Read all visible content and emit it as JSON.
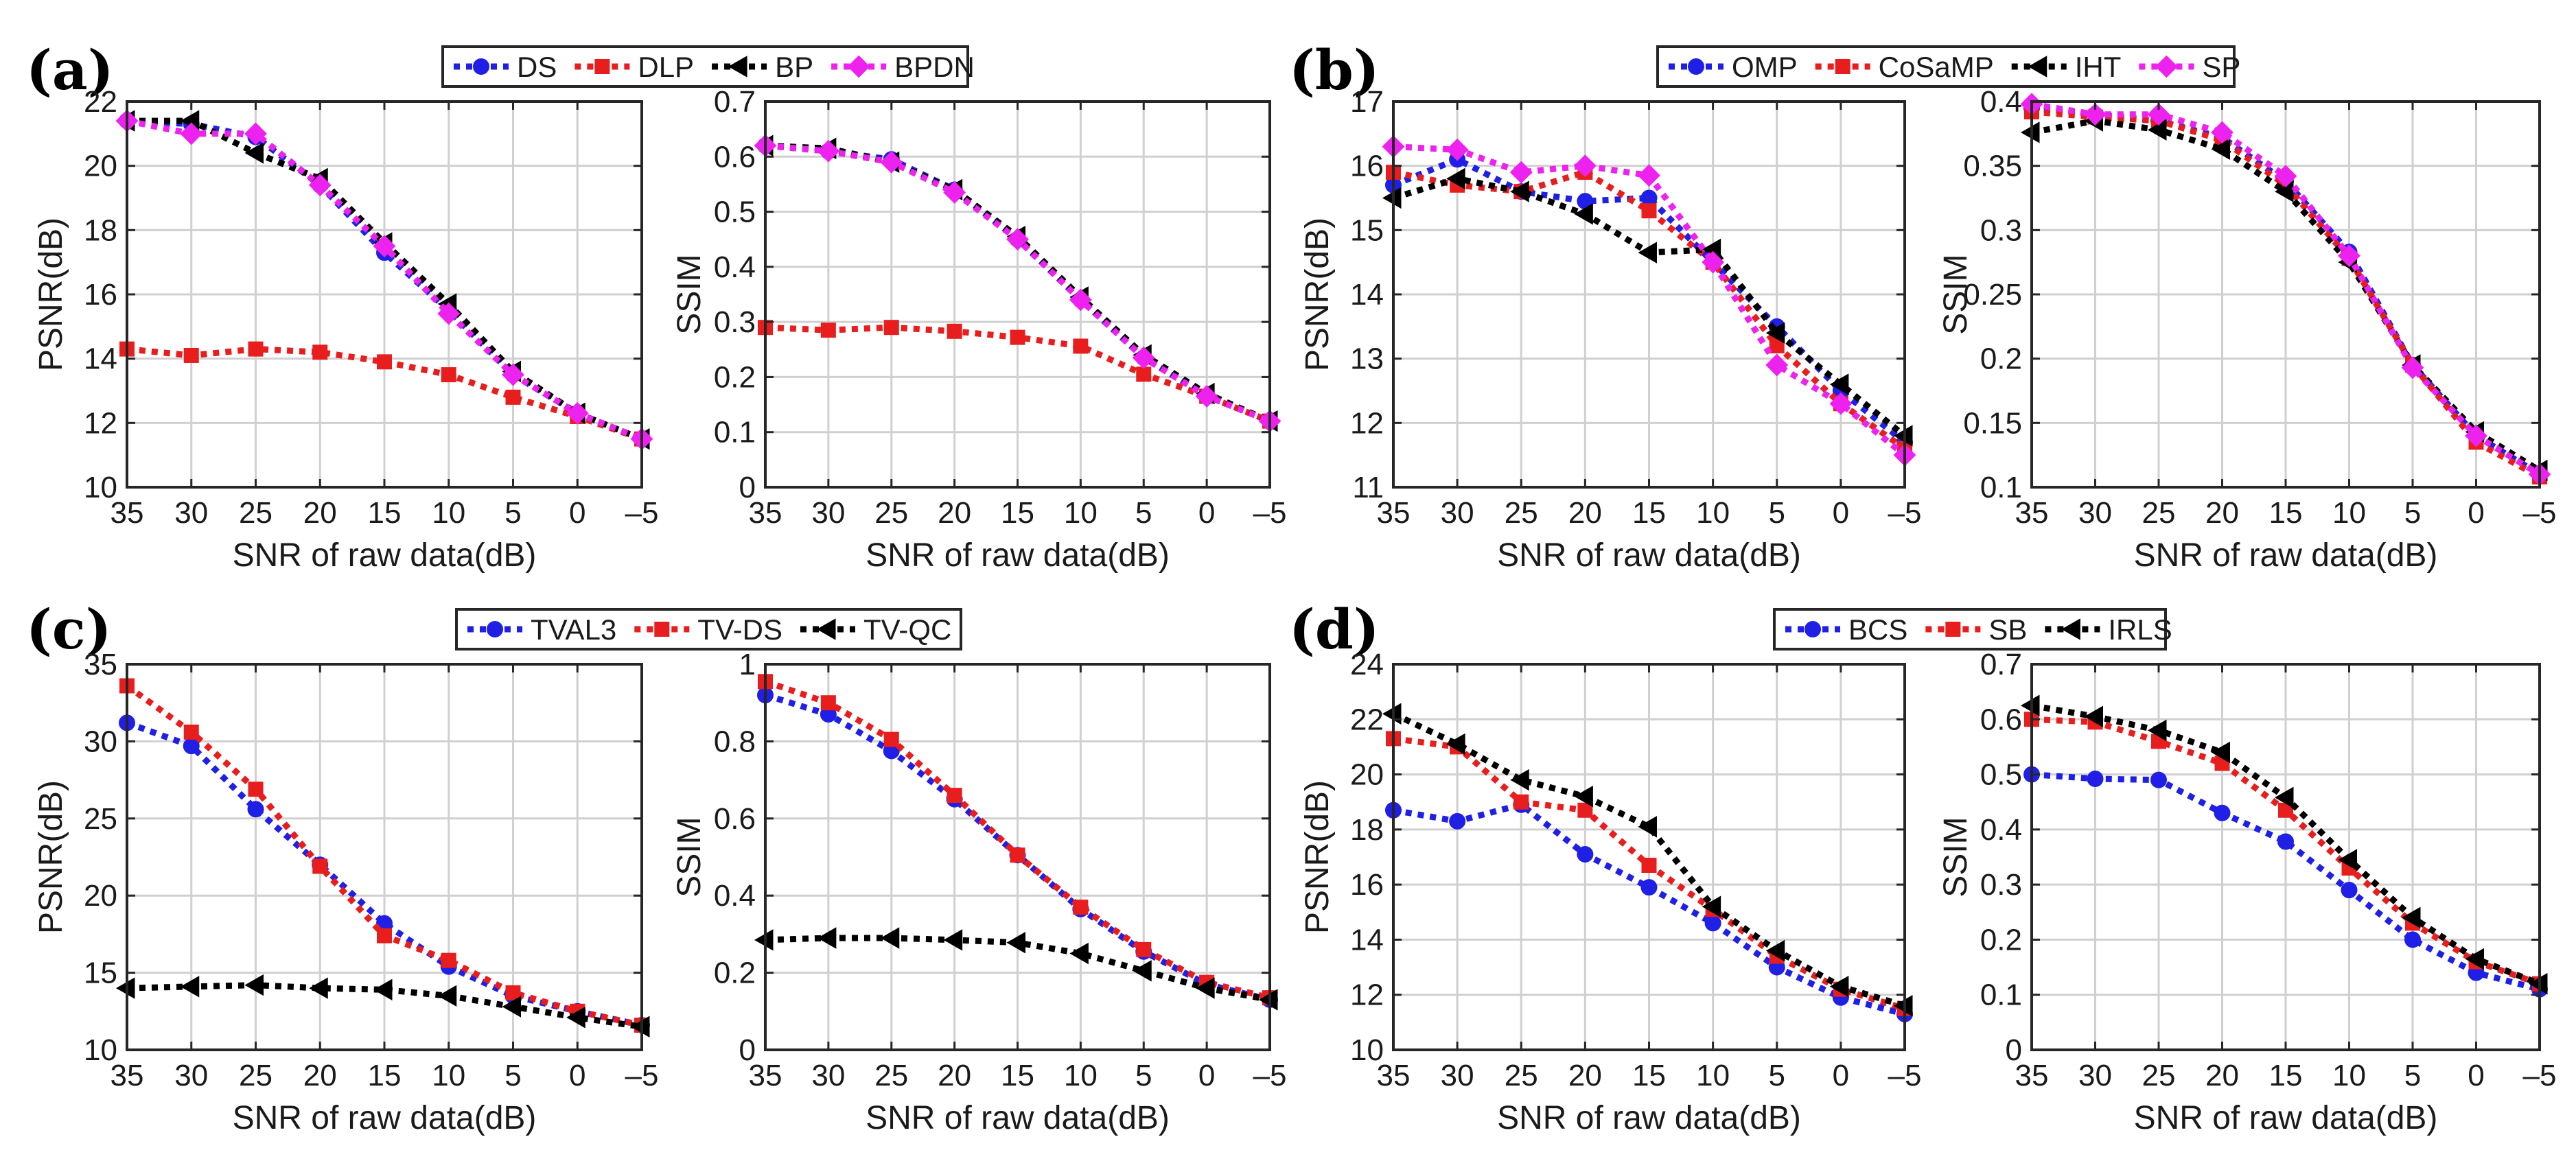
{
  "figure": {
    "panel_labels": [
      "(a)",
      "(b)",
      "(c)",
      "(d)"
    ],
    "colors": {
      "blue": "#1f1fe6",
      "red": "#e81e1e",
      "black": "#000000",
      "magenta": "#ee22ee",
      "grid": "#d0d0d0"
    }
  },
  "chart_data": [
    {
      "type": "line",
      "panel": "(a)",
      "x": [
        "35",
        "30",
        "25",
        "20",
        "15",
        "10",
        "5",
        "0",
        "–5"
      ],
      "xlabel": "SNR of raw data(dB)",
      "ylabel": "PSNR(dB)",
      "ylim": [
        10,
        22
      ],
      "yticks": [
        "10",
        "12",
        "14",
        "16",
        "18",
        "20",
        "22"
      ],
      "grid": true,
      "legend": "top-center",
      "series": [
        {
          "name": "DS",
          "color": "blue",
          "marker": "circle",
          "values": [
            21.4,
            21.3,
            20.9,
            19.4,
            17.3,
            15.5,
            13.5,
            12.3,
            11.5
          ]
        },
        {
          "name": "DLP",
          "color": "red",
          "marker": "square",
          "values": [
            14.3,
            14.1,
            14.3,
            14.2,
            13.9,
            13.5,
            12.8,
            12.2,
            11.5
          ]
        },
        {
          "name": "BP",
          "color": "black",
          "marker": "triangle-left",
          "values": [
            21.4,
            21.4,
            20.4,
            19.6,
            17.6,
            15.7,
            13.6,
            12.3,
            11.5
          ]
        },
        {
          "name": "BPDN",
          "color": "magenta",
          "marker": "diamond",
          "values": [
            21.4,
            21.0,
            21.0,
            19.4,
            17.5,
            15.4,
            13.5,
            12.3,
            11.5
          ]
        }
      ]
    },
    {
      "type": "line",
      "panel": "(a)",
      "x": [
        "35",
        "30",
        "25",
        "20",
        "15",
        "10",
        "5",
        "0",
        "–5"
      ],
      "xlabel": "SNR of raw data(dB)",
      "ylabel": "SSIM",
      "ylim": [
        0,
        0.7
      ],
      "yticks": [
        "0",
        "0.1",
        "0.2",
        "0.3",
        "0.4",
        "0.5",
        "0.6",
        "0.7"
      ],
      "grid": true,
      "series": [
        {
          "name": "DS",
          "color": "blue",
          "marker": "circle",
          "values": [
            0.62,
            0.61,
            0.595,
            0.54,
            0.45,
            0.34,
            0.235,
            0.165,
            0.12
          ]
        },
        {
          "name": "DLP",
          "color": "red",
          "marker": "square",
          "values": [
            0.29,
            0.285,
            0.29,
            0.283,
            0.272,
            0.256,
            0.205,
            0.165,
            0.12
          ]
        },
        {
          "name": "BP",
          "color": "black",
          "marker": "triangle-left",
          "values": [
            0.62,
            0.615,
            0.59,
            0.54,
            0.455,
            0.345,
            0.24,
            0.17,
            0.12
          ]
        },
        {
          "name": "BPDN",
          "color": "magenta",
          "marker": "diamond",
          "values": [
            0.62,
            0.61,
            0.59,
            0.535,
            0.45,
            0.34,
            0.235,
            0.165,
            0.12
          ]
        }
      ]
    },
    {
      "type": "line",
      "panel": "(b)",
      "x": [
        "35",
        "30",
        "25",
        "20",
        "15",
        "10",
        "5",
        "0",
        "–5"
      ],
      "xlabel": "SNR of raw data(dB)",
      "ylabel": "PSNR(dB)",
      "ylim": [
        11,
        17
      ],
      "yticks": [
        "11",
        "12",
        "13",
        "14",
        "15",
        "16",
        "17"
      ],
      "grid": true,
      "legend": "top-center",
      "series": [
        {
          "name": "OMP",
          "color": "blue",
          "marker": "circle",
          "values": [
            15.7,
            16.1,
            15.6,
            15.45,
            15.5,
            14.5,
            13.5,
            12.5,
            11.7
          ]
        },
        {
          "name": "CoSaMP",
          "color": "red",
          "marker": "square",
          "values": [
            15.9,
            15.7,
            15.6,
            15.9,
            15.3,
            14.5,
            13.2,
            12.3,
            11.6
          ]
        },
        {
          "name": "IHT",
          "color": "black",
          "marker": "triangle-left",
          "values": [
            15.5,
            15.8,
            15.6,
            15.25,
            14.65,
            14.7,
            13.4,
            12.6,
            11.8
          ]
        },
        {
          "name": "SP",
          "color": "magenta",
          "marker": "diamond",
          "values": [
            16.3,
            16.25,
            15.9,
            16.0,
            15.85,
            14.5,
            12.9,
            12.3,
            11.5
          ]
        }
      ]
    },
    {
      "type": "line",
      "panel": "(b)",
      "x": [
        "35",
        "30",
        "25",
        "20",
        "15",
        "10",
        "5",
        "0",
        "–5"
      ],
      "xlabel": "SNR of raw data(dB)",
      "ylabel": "SSIM",
      "ylim": [
        0.1,
        0.4
      ],
      "yticks": [
        "0.1",
        "0.15",
        "0.2",
        "0.25",
        "0.3",
        "0.35",
        "0.4"
      ],
      "grid": true,
      "series": [
        {
          "name": "OMP",
          "color": "blue",
          "marker": "circle",
          "values": [
            0.395,
            0.39,
            0.385,
            0.372,
            0.338,
            0.283,
            0.195,
            0.14,
            0.11
          ]
        },
        {
          "name": "CoSaMP",
          "color": "red",
          "marker": "square",
          "values": [
            0.392,
            0.388,
            0.385,
            0.37,
            0.335,
            0.278,
            0.195,
            0.135,
            0.108
          ]
        },
        {
          "name": "IHT",
          "color": "black",
          "marker": "triangle-left",
          "values": [
            0.376,
            0.385,
            0.378,
            0.363,
            0.33,
            0.275,
            0.195,
            0.143,
            0.113
          ]
        },
        {
          "name": "SP",
          "color": "magenta",
          "marker": "diamond",
          "values": [
            0.398,
            0.39,
            0.39,
            0.376,
            0.342,
            0.28,
            0.193,
            0.14,
            0.11
          ]
        }
      ]
    },
    {
      "type": "line",
      "panel": "(c)",
      "x": [
        "35",
        "30",
        "25",
        "20",
        "15",
        "10",
        "5",
        "0",
        "–5"
      ],
      "xlabel": "SNR of raw data(dB)",
      "ylabel": "PSNR(dB)",
      "ylim": [
        10,
        35
      ],
      "yticks": [
        "10",
        "15",
        "20",
        "25",
        "30",
        "35"
      ],
      "grid": true,
      "legend": "top-center",
      "series": [
        {
          "name": "TVAL3",
          "color": "blue",
          "marker": "circle",
          "values": [
            31.2,
            29.7,
            25.6,
            22.0,
            18.2,
            15.4,
            13.5,
            12.5,
            11.6
          ]
        },
        {
          "name": "TV-DS",
          "color": "red",
          "marker": "square",
          "values": [
            33.6,
            30.6,
            26.9,
            21.9,
            17.4,
            15.8,
            13.7,
            12.5,
            11.6
          ]
        },
        {
          "name": "TV-QC",
          "color": "black",
          "marker": "triangle-left",
          "values": [
            14.0,
            14.1,
            14.2,
            14.0,
            13.9,
            13.5,
            12.8,
            12.1,
            11.5
          ]
        }
      ]
    },
    {
      "type": "line",
      "panel": "(c)",
      "x": [
        "35",
        "30",
        "25",
        "20",
        "15",
        "10",
        "5",
        "0",
        "–5"
      ],
      "xlabel": "SNR of raw data(dB)",
      "ylabel": "SSIM",
      "ylim": [
        0,
        1
      ],
      "yticks": [
        "0",
        "0.2",
        "0.4",
        "0.6",
        "0.8",
        "1"
      ],
      "grid": true,
      "series": [
        {
          "name": "TVAL3",
          "color": "blue",
          "marker": "circle",
          "values": [
            0.92,
            0.87,
            0.775,
            0.65,
            0.505,
            0.365,
            0.255,
            0.17,
            0.13
          ]
        },
        {
          "name": "TV-DS",
          "color": "red",
          "marker": "square",
          "values": [
            0.955,
            0.9,
            0.805,
            0.66,
            0.505,
            0.37,
            0.26,
            0.175,
            0.135
          ]
        },
        {
          "name": "TV-QC",
          "color": "black",
          "marker": "triangle-left",
          "values": [
            0.285,
            0.29,
            0.29,
            0.285,
            0.278,
            0.25,
            0.205,
            0.16,
            0.13
          ]
        }
      ]
    },
    {
      "type": "line",
      "panel": "(d)",
      "x": [
        "35",
        "30",
        "25",
        "20",
        "15",
        "10",
        "5",
        "0",
        "–5"
      ],
      "xlabel": "SNR of raw data(dB)",
      "ylabel": "PSNR(dB)",
      "ylim": [
        10,
        24
      ],
      "yticks": [
        "10",
        "12",
        "14",
        "16",
        "18",
        "20",
        "22",
        "24"
      ],
      "grid": true,
      "legend": "top-center",
      "series": [
        {
          "name": "BCS",
          "color": "blue",
          "marker": "circle",
          "values": [
            18.7,
            18.3,
            18.9,
            17.1,
            15.9,
            14.6,
            13.0,
            11.9,
            11.3
          ]
        },
        {
          "name": "SB",
          "color": "red",
          "marker": "square",
          "values": [
            21.3,
            21.0,
            19.0,
            18.7,
            16.7,
            15.1,
            13.4,
            12.2,
            11.5
          ]
        },
        {
          "name": "IRLS",
          "color": "black",
          "marker": "triangle-left",
          "values": [
            22.2,
            21.1,
            19.8,
            19.2,
            18.1,
            15.2,
            13.6,
            12.3,
            11.6
          ]
        }
      ]
    },
    {
      "type": "line",
      "panel": "(d)",
      "x": [
        "35",
        "30",
        "25",
        "20",
        "15",
        "10",
        "5",
        "0",
        "–5"
      ],
      "xlabel": "SNR of raw data(dB)",
      "ylabel": "SSIM",
      "ylim": [
        0,
        0.7
      ],
      "yticks": [
        "0",
        "0.1",
        "0.2",
        "0.3",
        "0.4",
        "0.5",
        "0.6",
        "0.7"
      ],
      "grid": true,
      "series": [
        {
          "name": "BCS",
          "color": "blue",
          "marker": "circle",
          "values": [
            0.5,
            0.492,
            0.49,
            0.43,
            0.378,
            0.29,
            0.2,
            0.14,
            0.11
          ]
        },
        {
          "name": "SB",
          "color": "red",
          "marker": "square",
          "values": [
            0.6,
            0.595,
            0.56,
            0.52,
            0.435,
            0.33,
            0.23,
            0.16,
            0.12
          ]
        },
        {
          "name": "IRLS",
          "color": "black",
          "marker": "triangle-left",
          "values": [
            0.625,
            0.605,
            0.58,
            0.54,
            0.458,
            0.345,
            0.24,
            0.165,
            0.12
          ]
        }
      ]
    }
  ]
}
